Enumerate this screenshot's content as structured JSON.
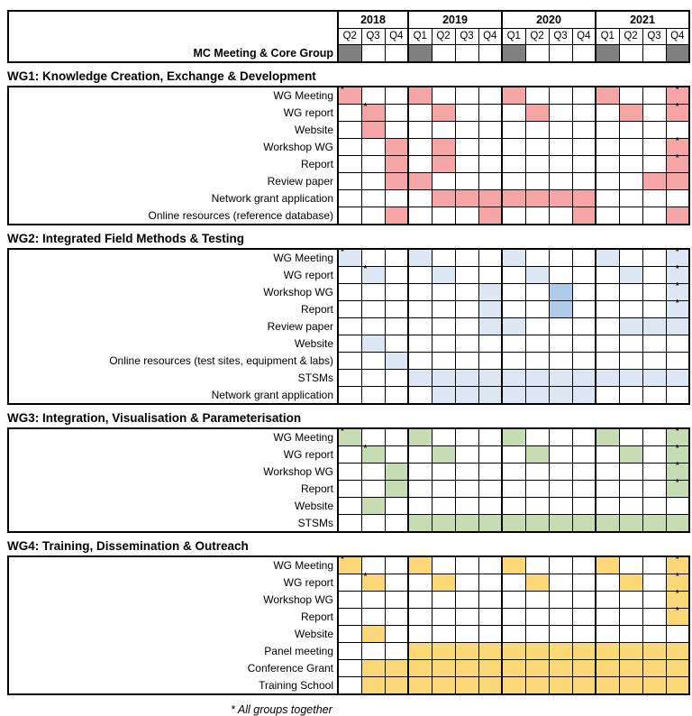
{
  "chart_data": {
    "type": "table",
    "subtype": "gantt-quarter-timeline",
    "years": [
      {
        "label": "2018",
        "quarters": [
          "Q2",
          "Q3",
          "Q4"
        ]
      },
      {
        "label": "2019",
        "quarters": [
          "Q1",
          "Q2",
          "Q3",
          "Q4"
        ]
      },
      {
        "label": "2020",
        "quarters": [
          "Q1",
          "Q2",
          "Q3",
          "Q4"
        ]
      },
      {
        "label": "2021",
        "quarters": [
          "Q1",
          "Q2",
          "Q3",
          "Q4"
        ]
      }
    ],
    "columns": [
      "2018 Q2",
      "2018 Q3",
      "2018 Q4",
      "2019 Q1",
      "2019 Q2",
      "2019 Q3",
      "2019 Q4",
      "2020 Q1",
      "2020 Q2",
      "2020 Q3",
      "2020 Q4",
      "2021 Q1",
      "2021 Q2",
      "2021 Q3",
      "2021 Q4"
    ],
    "year_boundary_columns": [
      3,
      7,
      11
    ],
    "mc_row": {
      "label": "MC Meeting & Core Group",
      "fill_color": "#808080",
      "marks": [
        {
          "c": 0
        },
        {
          "c": 3
        },
        {
          "c": 7
        },
        {
          "c": 11
        },
        {
          "c": 14
        }
      ]
    },
    "sections": [
      {
        "title": "WG1: Knowledge Creation, Exchange & Development",
        "fill_color": "#F5A5A5",
        "rows": [
          {
            "label": "WG Meeting",
            "marks": [
              {
                "c": 0,
                "star": true
              },
              {
                "c": 3
              },
              {
                "c": 7
              },
              {
                "c": 11
              },
              {
                "c": 14,
                "star": true
              }
            ]
          },
          {
            "label": "WG report",
            "marks": [
              {
                "c": 1,
                "star": true
              },
              {
                "c": 4
              },
              {
                "c": 8
              },
              {
                "c": 12
              },
              {
                "c": 14,
                "star": true
              }
            ]
          },
          {
            "label": "Website",
            "marks": [
              {
                "c": 1
              }
            ]
          },
          {
            "label": "Workshop WG",
            "marks": [
              {
                "c": 2
              },
              {
                "c": 4
              },
              {
                "c": 14,
                "star": true
              }
            ]
          },
          {
            "label": "Report",
            "marks": [
              {
                "c": 2
              },
              {
                "c": 4
              },
              {
                "c": 14,
                "star": true
              }
            ]
          },
          {
            "label": "Review paper",
            "marks": [
              {
                "c": 2,
                "to": 3
              },
              {
                "c": 13,
                "to": 14
              }
            ]
          },
          {
            "label": "Network grant application",
            "marks": [
              {
                "c": 4,
                "to": 10
              }
            ]
          },
          {
            "label": "Online resources (reference database)",
            "marks": [
              {
                "c": 2
              },
              {
                "c": 6
              },
              {
                "c": 10
              },
              {
                "c": 14
              }
            ]
          }
        ]
      },
      {
        "title": "WG2: Integrated Field Methods & Testing",
        "fill_color": "#DCE7F3",
        "fill_color_dark": "#AFCBE9",
        "rows": [
          {
            "label": "WG Meeting",
            "marks": [
              {
                "c": 0,
                "star": true
              },
              {
                "c": 3
              },
              {
                "c": 7
              },
              {
                "c": 11
              },
              {
                "c": 14,
                "star": true
              }
            ]
          },
          {
            "label": "WG report",
            "marks": [
              {
                "c": 1,
                "star": true
              },
              {
                "c": 4
              },
              {
                "c": 8
              },
              {
                "c": 12
              },
              {
                "c": 14,
                "star": true
              }
            ]
          },
          {
            "label": "Workshop WG",
            "marks": [
              {
                "c": 6
              },
              {
                "c": 9,
                "dark": true
              },
              {
                "c": 14,
                "star": true
              }
            ]
          },
          {
            "label": "Report",
            "marks": [
              {
                "c": 6
              },
              {
                "c": 9,
                "dark": true
              },
              {
                "c": 14,
                "star": true
              }
            ]
          },
          {
            "label": "Review paper",
            "marks": [
              {
                "c": 6,
                "to": 7
              },
              {
                "c": 12,
                "to": 14
              }
            ]
          },
          {
            "label": "Website",
            "marks": [
              {
                "c": 1
              }
            ]
          },
          {
            "label": "Online resources (test sites, equipment & labs)",
            "marks": [
              {
                "c": 2
              }
            ]
          },
          {
            "label": "STSMs",
            "marks": [
              {
                "c": 3,
                "to": 14
              }
            ]
          },
          {
            "label": "Network grant application",
            "marks": [
              {
                "c": 4,
                "to": 10
              }
            ]
          }
        ]
      },
      {
        "title": "WG3: Integration, Visualisation & Parameterisation",
        "fill_color": "#C6DDB4",
        "rows": [
          {
            "label": "WG Meeting",
            "marks": [
              {
                "c": 0,
                "star": true
              },
              {
                "c": 3
              },
              {
                "c": 7
              },
              {
                "c": 11
              },
              {
                "c": 14,
                "star": true
              }
            ]
          },
          {
            "label": "WG report",
            "marks": [
              {
                "c": 1,
                "star": true
              },
              {
                "c": 4
              },
              {
                "c": 8
              },
              {
                "c": 12
              },
              {
                "c": 14,
                "star": true
              }
            ]
          },
          {
            "label": "Workshop WG",
            "marks": [
              {
                "c": 2
              },
              {
                "c": 14,
                "star": true
              }
            ]
          },
          {
            "label": "Report",
            "marks": [
              {
                "c": 2
              },
              {
                "c": 14,
                "star": true
              }
            ]
          },
          {
            "label": "Website",
            "marks": [
              {
                "c": 1
              }
            ]
          },
          {
            "label": "STSMs",
            "marks": [
              {
                "c": 3,
                "to": 14
              }
            ]
          }
        ]
      },
      {
        "title": "WG4: Training, Dissemination & Outreach",
        "fill_color": "#FBD877",
        "rows": [
          {
            "label": "WG Meeting",
            "marks": [
              {
                "c": 0,
                "star": true
              },
              {
                "c": 3
              },
              {
                "c": 7
              },
              {
                "c": 11
              },
              {
                "c": 14,
                "star": true
              }
            ]
          },
          {
            "label": "WG report",
            "marks": [
              {
                "c": 1,
                "star": true
              },
              {
                "c": 4
              },
              {
                "c": 8
              },
              {
                "c": 12
              },
              {
                "c": 14,
                "star": true
              }
            ]
          },
          {
            "label": "Workshop WG",
            "marks": [
              {
                "c": 14,
                "star": true
              }
            ]
          },
          {
            "label": "Report",
            "marks": [
              {
                "c": 14,
                "star": true
              }
            ]
          },
          {
            "label": "Website",
            "marks": [
              {
                "c": 1
              }
            ]
          },
          {
            "label": "Panel meeting",
            "marks": [
              {
                "c": 3,
                "to": 14
              }
            ]
          },
          {
            "label": "Conference Grant",
            "marks": [
              {
                "c": 1,
                "to": 14
              }
            ]
          },
          {
            "label": "Training School",
            "marks": [
              {
                "c": 1,
                "to": 14
              }
            ]
          }
        ]
      }
    ],
    "star_note": "* All groups together"
  }
}
